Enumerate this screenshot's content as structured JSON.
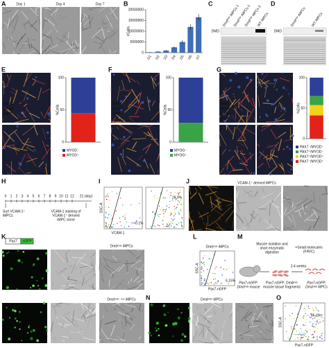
{
  "panel_letters": [
    "A",
    "B",
    "C",
    "D",
    "E",
    "F",
    "G",
    "H",
    "I",
    "J",
    "K",
    "L",
    "M",
    "N",
    "O"
  ],
  "A": {
    "images": [
      "Day 1",
      "Day 4",
      "Day 7"
    ]
  },
  "C": {
    "lanes": [
      "Dmdᵐᵈˣ iMPCs 1",
      "Dmdᵐᵈˣ iMPCs 2",
      "Dmdᵐᵈˣ MPCs 3",
      "WT iMPCs"
    ],
    "protein": "DMD"
  },
  "D": {
    "lanes": [
      "Dmdᵐᵈˣ iMPCs",
      "WT iMPCs"
    ],
    "protein": "DMD"
  },
  "E": {
    "stains": [
      "MYOD",
      "MYHC",
      "DAPI"
    ]
  },
  "F": {
    "stains": [
      "MYOG",
      "MYHC",
      "DAPI"
    ]
  },
  "G": {
    "stains": [
      "PAX7",
      "MYOD",
      "MYHC",
      "DAPI"
    ]
  },
  "H": {
    "ticks": [
      "0",
      "1",
      "2",
      "3",
      "4",
      "5",
      "6",
      "7",
      "8",
      "9",
      "10",
      "11",
      "12"
    ],
    "end": "21 (day)",
    "step1": [
      "Sort VCAM-1⁺",
      "iMPCs"
    ],
    "step2": [
      "VCAM-1 staining of",
      "VCAM-1⁺ derived",
      "iMPC clone"
    ]
  },
  "I": {
    "gates": [
      "<0.1%",
      "26.9%"
    ],
    "y_label": "SSC-A",
    "x_label": "VCAM-1"
  },
  "J": {
    "title": "VCAM-1⁺ derived iMPCs",
    "stain": "VCAM-1"
  },
  "K": {
    "construct": [
      "Pax7",
      "nGFP"
    ],
    "row1": "Dmdᵐᵈˣ iMPCs",
    "row2": "Dmdᵐᵈˣ⁻⁴ᶜᵛ iMPCs",
    "channels": [
      "Pax7-nGFP",
      "Pax7-nGFP"
    ]
  },
  "L": {
    "title": "Dmdᵐᵈˣ iMPCs",
    "gate": "5.15%",
    "y_label": "SSC-A",
    "x_label": "Pax7-nGFP"
  },
  "M": {
    "step": [
      "Muscle isolation and",
      "short enzymatic",
      "digestion"
    ],
    "molecules": [
      "+Small molecules",
      "(F/R/C)"
    ],
    "weeks": "2-4 weeks",
    "mouse": [
      "Pax7-nGFP;",
      "Dmdᵐᵈˣ mouse"
    ],
    "tissue": [
      "Pax7-nGFP; Dmdᵐᵈˣ",
      "muscle tissue fragments"
    ],
    "mpcs": [
      "Pax7-nGFP;",
      "Dmdᵐᵈˣ MPCs"
    ]
  },
  "N": {
    "title": "Dmdᵐᵈˣ MPCs",
    "channel": "Pax7-nGFP"
  },
  "O": {
    "gate": "86.2%",
    "y_label": "SSC-A",
    "x_label": "Pax7-nGFP"
  },
  "chart_data": [
    {
      "type": "bar",
      "y_label": "#Cells",
      "categories": [
        "D1",
        "D2",
        "D3",
        "D4",
        "D5",
        "D6",
        "D7"
      ],
      "values": [
        200000,
        500000,
        1000000,
        2500000,
        5000000,
        12000000,
        16500000
      ],
      "errors": [
        100000,
        200000,
        300000,
        500000,
        800000,
        1200000,
        1500000
      ],
      "color": "#3f6fb5",
      "ylim": [
        0,
        20000000
      ],
      "yticks": [
        0,
        5000000,
        10000000,
        15000000,
        20000000
      ]
    },
    {
      "type": "stacked_bar",
      "y_label": "%Cells",
      "categories": [
        null
      ],
      "series": [
        {
          "name": "MYOD⁺",
          "color": "#e2231a",
          "values": [
            45
          ]
        },
        {
          "name": "MYOD⁻",
          "color": "#2e3f98",
          "values": [
            55
          ]
        }
      ],
      "ylim": [
        0,
        100
      ],
      "yticks": [
        0,
        50,
        100
      ]
    },
    {
      "type": "stacked_bar",
      "y_label": "%Cells",
      "categories": [
        null
      ],
      "series": [
        {
          "name": "MYOG⁺",
          "color": "#3aa346",
          "values": [
            30
          ]
        },
        {
          "name": "MYOG⁻",
          "color": "#2e3f98",
          "values": [
            70
          ]
        }
      ],
      "ylim": [
        0,
        100
      ],
      "yticks": [
        0,
        50,
        100
      ]
    },
    {
      "type": "stacked_bar",
      "y_label": "%Cells",
      "categories": [
        null
      ],
      "series": [
        {
          "name": "PAX7⁻/MYOD⁺",
          "color": "#e2231a",
          "values": [
            38
          ]
        },
        {
          "name": "PAX7⁺/MYOD⁺",
          "color": "#f2d21b",
          "values": [
            17
          ]
        },
        {
          "name": "PAX7⁺/MYOD⁻",
          "color": "#3aa346",
          "values": [
            15
          ]
        },
        {
          "name": "PAX7⁻/MYOD⁻",
          "color": "#2e3f98",
          "values": [
            30
          ]
        }
      ],
      "ylim": [
        0,
        100
      ],
      "yticks": [
        0,
        50,
        100
      ]
    }
  ]
}
